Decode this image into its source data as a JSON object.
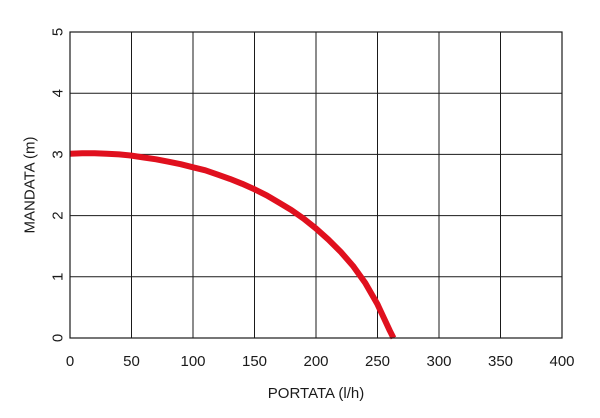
{
  "chart_data": {
    "type": "line",
    "xlabel": "PORTATA (l/h)",
    "ylabel": "MANDATA (m)",
    "xlim": [
      0,
      400
    ],
    "ylim": [
      0,
      5
    ],
    "xticks": [
      0,
      50,
      100,
      150,
      200,
      250,
      300,
      350,
      400
    ],
    "yticks": [
      0,
      1,
      2,
      3,
      4,
      5
    ],
    "grid": true,
    "series": [
      {
        "color": "#e0101e",
        "x": [
          0,
          10,
          20,
          30,
          40,
          50,
          60,
          70,
          80,
          90,
          100,
          110,
          120,
          130,
          140,
          150,
          160,
          170,
          180,
          190,
          200,
          210,
          220,
          230,
          240,
          250,
          260,
          263
        ],
        "y": [
          3.01,
          3.02,
          3.02,
          3.01,
          3.0,
          2.98,
          2.95,
          2.92,
          2.88,
          2.84,
          2.79,
          2.74,
          2.67,
          2.6,
          2.52,
          2.43,
          2.33,
          2.21,
          2.09,
          1.95,
          1.79,
          1.61,
          1.41,
          1.18,
          0.9,
          0.55,
          0.12,
          0.0
        ]
      }
    ]
  }
}
